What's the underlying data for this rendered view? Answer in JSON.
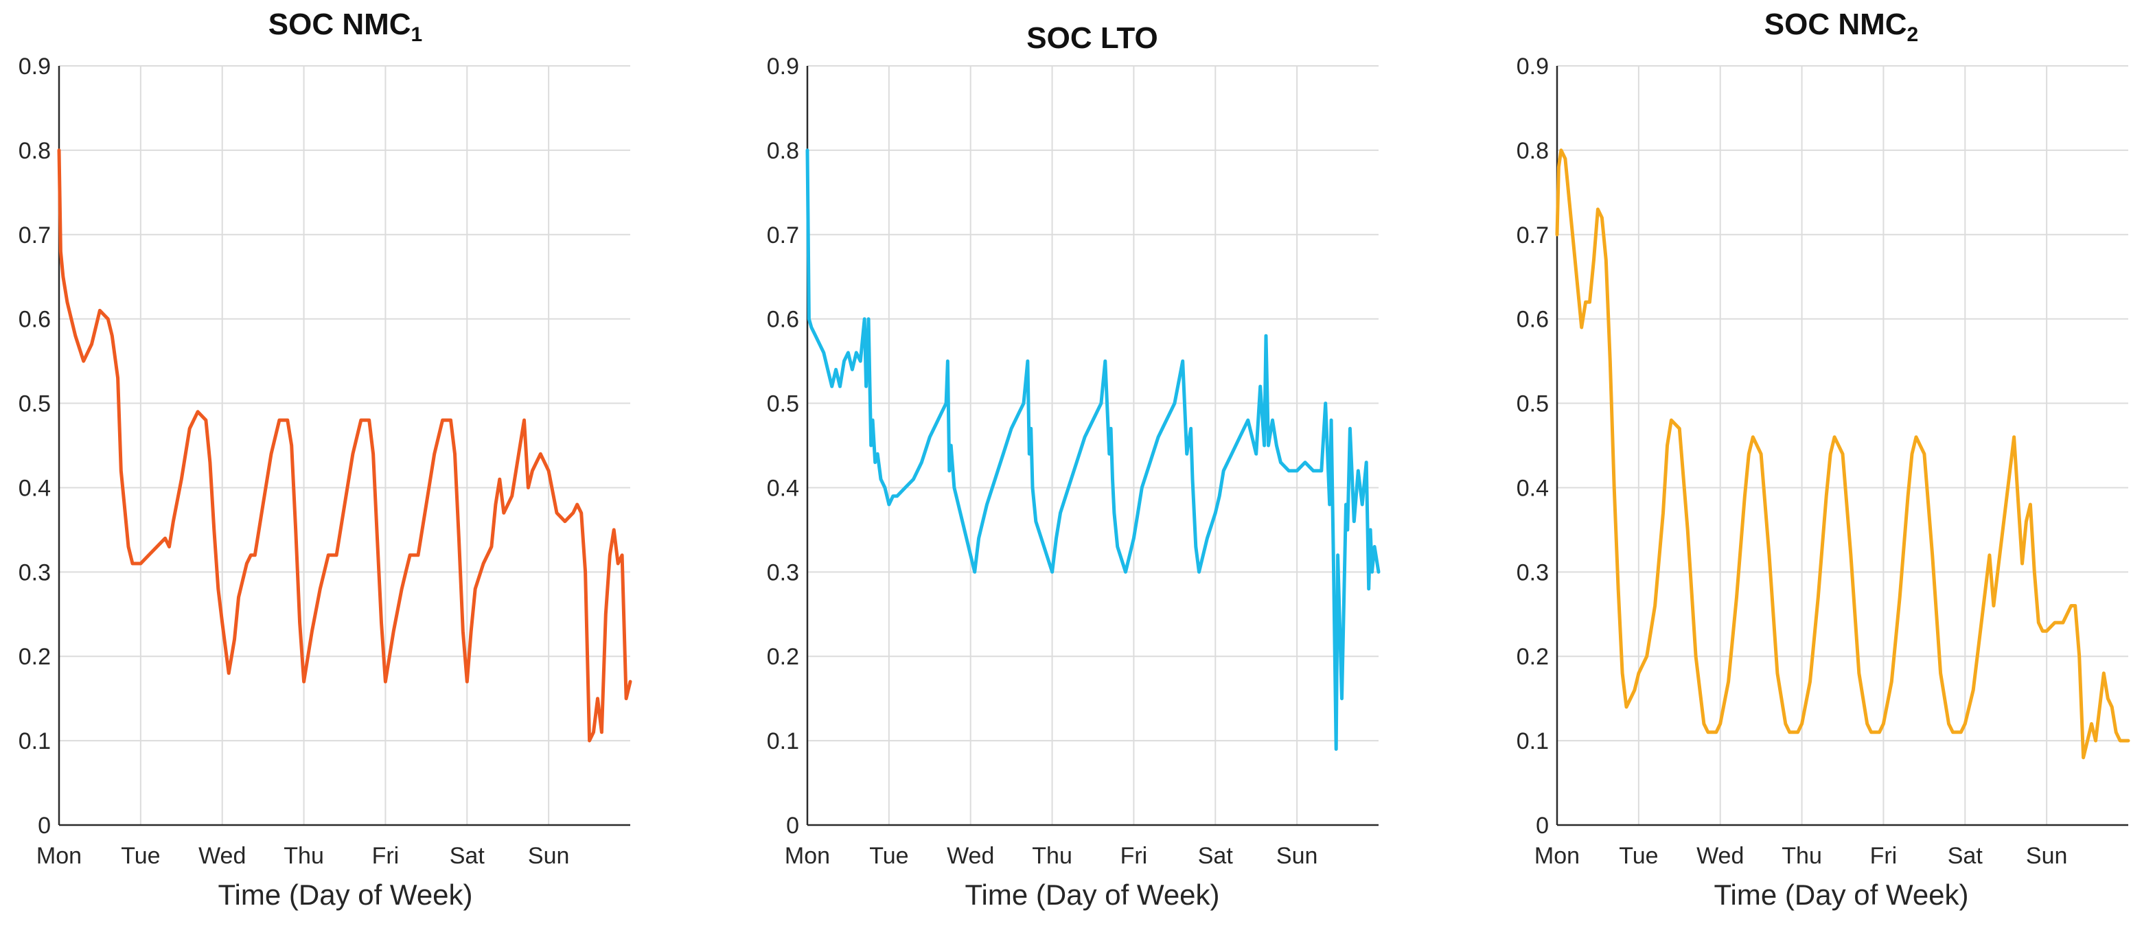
{
  "chart_data": [
    {
      "type": "line",
      "title_main": "SOC NMC",
      "title_sub": "1",
      "xlabel": "Time (Day of Week)",
      "ylabel": "",
      "color": "#EE5A20",
      "xlim": [
        0,
        7
      ],
      "ylim": [
        0,
        0.9
      ],
      "categories": [
        "Mon",
        "Tue",
        "Wed",
        "Thu",
        "Fri",
        "Sat",
        "Sun"
      ],
      "yticks": [
        "0",
        "0.1",
        "0.2",
        "0.3",
        "0.4",
        "0.5",
        "0.6",
        "0.7",
        "0.8",
        "0.9"
      ],
      "series": [
        {
          "name": "SOC NMC1",
          "x": [
            0,
            0.02,
            0.05,
            0.1,
            0.2,
            0.3,
            0.35,
            0.4,
            0.5,
            0.6,
            0.65,
            0.72,
            0.76,
            0.8,
            0.85,
            0.9,
            1.0,
            1.1,
            1.2,
            1.3,
            1.35,
            1.4,
            1.5,
            1.6,
            1.7,
            1.8,
            1.85,
            1.9,
            1.95,
            2.0,
            2.08,
            2.15,
            2.2,
            2.3,
            2.35,
            2.4,
            2.5,
            2.6,
            2.7,
            2.8,
            2.85,
            2.9,
            2.95,
            3.0,
            3.1,
            3.2,
            3.25,
            3.3,
            3.4,
            3.5,
            3.6,
            3.7,
            3.8,
            3.85,
            3.9,
            3.95,
            4.0,
            4.1,
            4.2,
            4.25,
            4.3,
            4.4,
            4.5,
            4.6,
            4.7,
            4.8,
            4.85,
            4.9,
            4.95,
            5.0,
            5.05,
            5.1,
            5.2,
            5.3,
            5.35,
            5.4,
            5.45,
            5.55,
            5.65,
            5.7,
            5.75,
            5.8,
            5.9,
            6.0,
            6.1,
            6.2,
            6.3,
            6.35,
            6.4,
            6.45,
            6.5,
            6.55,
            6.6,
            6.65,
            6.7,
            6.75,
            6.8,
            6.85,
            6.9,
            6.95,
            7.0
          ],
          "values": [
            0.8,
            0.68,
            0.65,
            0.62,
            0.58,
            0.55,
            0.56,
            0.57,
            0.61,
            0.6,
            0.58,
            0.53,
            0.42,
            0.38,
            0.33,
            0.31,
            0.31,
            0.32,
            0.33,
            0.34,
            0.33,
            0.36,
            0.41,
            0.47,
            0.49,
            0.48,
            0.43,
            0.35,
            0.28,
            0.24,
            0.18,
            0.22,
            0.27,
            0.31,
            0.32,
            0.32,
            0.38,
            0.44,
            0.48,
            0.48,
            0.45,
            0.35,
            0.24,
            0.17,
            0.23,
            0.28,
            0.3,
            0.32,
            0.32,
            0.38,
            0.44,
            0.48,
            0.48,
            0.44,
            0.34,
            0.24,
            0.17,
            0.23,
            0.28,
            0.3,
            0.32,
            0.32,
            0.38,
            0.44,
            0.48,
            0.48,
            0.44,
            0.34,
            0.23,
            0.17,
            0.23,
            0.28,
            0.31,
            0.33,
            0.38,
            0.41,
            0.37,
            0.39,
            0.45,
            0.48,
            0.4,
            0.42,
            0.44,
            0.42,
            0.37,
            0.36,
            0.37,
            0.38,
            0.37,
            0.3,
            0.1,
            0.11,
            0.15,
            0.11,
            0.25,
            0.32,
            0.35,
            0.31,
            0.32,
            0.15,
            0.17
          ]
        }
      ]
    },
    {
      "type": "line",
      "title_main": "SOC LTO",
      "title_sub": "",
      "xlabel": "Time (Day of Week)",
      "ylabel": "",
      "color": "#1CB9E8",
      "xlim": [
        0,
        7
      ],
      "ylim": [
        0,
        0.9
      ],
      "categories": [
        "Mon",
        "Tue",
        "Wed",
        "Thu",
        "Fri",
        "Sat",
        "Sun"
      ],
      "yticks": [
        "0",
        "0.1",
        "0.2",
        "0.3",
        "0.4",
        "0.5",
        "0.6",
        "0.7",
        "0.8",
        "0.9"
      ],
      "series": [
        {
          "name": "SOC LTO",
          "x": [
            0,
            0.02,
            0.05,
            0.1,
            0.2,
            0.25,
            0.3,
            0.35,
            0.4,
            0.45,
            0.5,
            0.55,
            0.6,
            0.65,
            0.7,
            0.72,
            0.75,
            0.78,
            0.8,
            0.83,
            0.86,
            0.9,
            0.95,
            1.0,
            1.05,
            1.1,
            1.2,
            1.3,
            1.4,
            1.5,
            1.6,
            1.65,
            1.7,
            1.72,
            1.74,
            1.76,
            1.8,
            1.9,
            2.0,
            2.05,
            2.1,
            2.2,
            2.3,
            2.4,
            2.5,
            2.6,
            2.65,
            2.7,
            2.72,
            2.74,
            2.76,
            2.8,
            2.9,
            3.0,
            3.05,
            3.1,
            3.2,
            3.3,
            3.4,
            3.5,
            3.6,
            3.65,
            3.7,
            3.72,
            3.74,
            3.76,
            3.8,
            3.9,
            4.0,
            4.05,
            4.1,
            4.2,
            4.3,
            4.4,
            4.5,
            4.6,
            4.65,
            4.7,
            4.72,
            4.74,
            4.76,
            4.8,
            4.9,
            5.0,
            5.05,
            5.1,
            5.2,
            5.3,
            5.4,
            5.5,
            5.55,
            5.6,
            5.62,
            5.65,
            5.7,
            5.75,
            5.8,
            5.9,
            6.0,
            6.1,
            6.2,
            6.3,
            6.35,
            6.4,
            6.42,
            6.45,
            6.48,
            6.5,
            6.55,
            6.6,
            6.62,
            6.65,
            6.7,
            6.75,
            6.8,
            6.85,
            6.88,
            6.9,
            6.92,
            6.95,
            7.0
          ],
          "values": [
            0.8,
            0.6,
            0.59,
            0.58,
            0.56,
            0.54,
            0.52,
            0.54,
            0.52,
            0.55,
            0.56,
            0.54,
            0.56,
            0.55,
            0.6,
            0.52,
            0.6,
            0.45,
            0.48,
            0.43,
            0.44,
            0.41,
            0.4,
            0.38,
            0.39,
            0.39,
            0.4,
            0.41,
            0.43,
            0.46,
            0.48,
            0.49,
            0.5,
            0.55,
            0.42,
            0.45,
            0.4,
            0.36,
            0.32,
            0.3,
            0.34,
            0.38,
            0.41,
            0.44,
            0.47,
            0.49,
            0.5,
            0.55,
            0.44,
            0.47,
            0.4,
            0.36,
            0.33,
            0.3,
            0.34,
            0.37,
            0.4,
            0.43,
            0.46,
            0.48,
            0.5,
            0.55,
            0.44,
            0.47,
            0.41,
            0.37,
            0.33,
            0.3,
            0.34,
            0.37,
            0.4,
            0.43,
            0.46,
            0.48,
            0.5,
            0.55,
            0.44,
            0.47,
            0.41,
            0.37,
            0.33,
            0.3,
            0.34,
            0.37,
            0.39,
            0.42,
            0.44,
            0.46,
            0.48,
            0.44,
            0.52,
            0.45,
            0.58,
            0.45,
            0.48,
            0.45,
            0.43,
            0.42,
            0.42,
            0.43,
            0.42,
            0.42,
            0.5,
            0.38,
            0.48,
            0.3,
            0.09,
            0.32,
            0.15,
            0.38,
            0.35,
            0.47,
            0.36,
            0.42,
            0.38,
            0.43,
            0.28,
            0.35,
            0.3,
            0.33,
            0.3
          ]
        }
      ]
    },
    {
      "type": "line",
      "title_main": "SOC NMC",
      "title_sub": "2",
      "xlabel": "Time (Day of Week)",
      "ylabel": "",
      "color": "#F5A81C",
      "xlim": [
        0,
        7
      ],
      "ylim": [
        0,
        0.9
      ],
      "categories": [
        "Mon",
        "Tue",
        "Wed",
        "Thu",
        "Fri",
        "Sat",
        "Sun"
      ],
      "yticks": [
        "0",
        "0.1",
        "0.2",
        "0.3",
        "0.4",
        "0.5",
        "0.6",
        "0.7",
        "0.8",
        "0.9"
      ],
      "series": [
        {
          "name": "SOC NMC2",
          "x": [
            0,
            0.02,
            0.05,
            0.1,
            0.15,
            0.2,
            0.25,
            0.3,
            0.35,
            0.4,
            0.45,
            0.5,
            0.55,
            0.6,
            0.65,
            0.7,
            0.75,
            0.8,
            0.85,
            0.9,
            0.95,
            1.0,
            1.1,
            1.2,
            1.3,
            1.35,
            1.4,
            1.5,
            1.6,
            1.7,
            1.8,
            1.85,
            1.9,
            1.95,
            2.0,
            2.1,
            2.2,
            2.3,
            2.35,
            2.4,
            2.5,
            2.6,
            2.7,
            2.8,
            2.85,
            2.9,
            2.95,
            3.0,
            3.1,
            3.2,
            3.3,
            3.35,
            3.4,
            3.5,
            3.6,
            3.7,
            3.8,
            3.85,
            3.9,
            3.95,
            4.0,
            4.1,
            4.2,
            4.3,
            4.35,
            4.4,
            4.5,
            4.6,
            4.7,
            4.8,
            4.85,
            4.9,
            4.95,
            5.0,
            5.1,
            5.2,
            5.3,
            5.35,
            5.4,
            5.5,
            5.6,
            5.7,
            5.75,
            5.8,
            5.85,
            5.9,
            5.95,
            6.0,
            6.1,
            6.2,
            6.3,
            6.35,
            6.4,
            6.45,
            6.5,
            6.55,
            6.6,
            6.65,
            6.7,
            6.75,
            6.8,
            6.85,
            6.9,
            7.0
          ],
          "values": [
            0.7,
            0.78,
            0.8,
            0.79,
            0.74,
            0.69,
            0.64,
            0.59,
            0.62,
            0.62,
            0.67,
            0.73,
            0.72,
            0.67,
            0.55,
            0.4,
            0.28,
            0.18,
            0.14,
            0.15,
            0.16,
            0.18,
            0.2,
            0.26,
            0.37,
            0.45,
            0.48,
            0.47,
            0.35,
            0.2,
            0.12,
            0.11,
            0.11,
            0.11,
            0.12,
            0.17,
            0.27,
            0.39,
            0.44,
            0.46,
            0.44,
            0.32,
            0.18,
            0.12,
            0.11,
            0.11,
            0.11,
            0.12,
            0.17,
            0.27,
            0.39,
            0.44,
            0.46,
            0.44,
            0.32,
            0.18,
            0.12,
            0.11,
            0.11,
            0.11,
            0.12,
            0.17,
            0.27,
            0.39,
            0.44,
            0.46,
            0.44,
            0.32,
            0.18,
            0.12,
            0.11,
            0.11,
            0.11,
            0.12,
            0.16,
            0.24,
            0.32,
            0.26,
            0.3,
            0.38,
            0.46,
            0.31,
            0.36,
            0.38,
            0.3,
            0.24,
            0.23,
            0.23,
            0.24,
            0.24,
            0.26,
            0.26,
            0.2,
            0.08,
            0.1,
            0.12,
            0.1,
            0.14,
            0.18,
            0.15,
            0.14,
            0.11,
            0.1,
            0.1
          ]
        }
      ]
    }
  ]
}
